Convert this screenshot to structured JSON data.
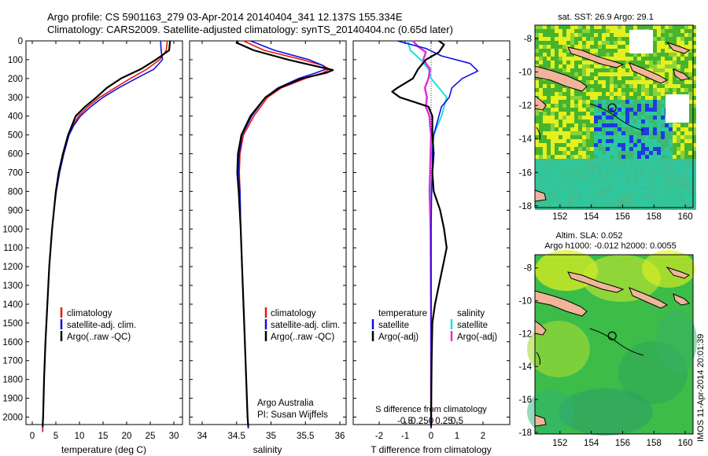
{
  "header": {
    "line1": "Argo profile: CS 5901163_279 03-Apr-2014 20140404_341 12.137S 155.334E",
    "line2": "Climatology: CARS2009. Satellite-adjusted climatology: synTS_20140404.nc (0.65d later)"
  },
  "colors": {
    "climatology": "#e8140e",
    "satellite": "#1010e0",
    "argo": "#000000",
    "sat_salinity": "#22dde0",
    "argo_salinity": "#e030d8",
    "map_green": "#46b42e",
    "map_yellow": "#e6f01e",
    "map_teal": "#2ec8a0",
    "map_blue": "#1e3cdc",
    "land": "#f0b49a"
  },
  "panels": {
    "depth_ticks": [
      "0",
      "100",
      "200",
      "300",
      "400",
      "500",
      "600",
      "700",
      "800",
      "900",
      "1000",
      "1100",
      "1200",
      "1300",
      "1400",
      "1500",
      "1600",
      "1700",
      "1800",
      "1900",
      "2000"
    ],
    "temperature": {
      "xlabel": "temperature (deg C)",
      "xticks": [
        "0",
        "5",
        "10",
        "15",
        "20",
        "25",
        "30"
      ],
      "legend": [
        "climatology",
        "satellite-adj. clim.",
        "Argo(..raw -QC)"
      ]
    },
    "salinity": {
      "xlabel": "salinity",
      "xticks": [
        "34",
        "34.5",
        "35",
        "35.5",
        "36"
      ],
      "legend": [
        "climatology",
        "satellite-adj. clim.",
        "Argo(..raw -QC)"
      ],
      "footer1": "Argo Australia",
      "footer2": "PI: Susan Wijffels"
    },
    "difference": {
      "xlabel": "T difference from climatology",
      "top_label": "S difference from climatology",
      "xticks_t": [
        "-2",
        "-1",
        "0",
        "1",
        "2"
      ],
      "xticks_s": [
        "-0.5",
        "-0.25",
        "0",
        "0.25",
        "0.5"
      ],
      "legend_t_title": "temperature",
      "legend_t": [
        "satellite",
        "Argo(-adj)"
      ],
      "legend_s_title": "salinity",
      "legend_s": [
        "satellite",
        "Argo(-adj)"
      ]
    }
  },
  "maps": {
    "sst_title": "sat. SST: 26.9 Argo: 29.1",
    "sla_title1": "Altim. SLA: 0.052",
    "sla_title2": "Argo h1000: -0.012 h2000: 0.0055",
    "lon_ticks": [
      "152",
      "154",
      "156",
      "158",
      "160"
    ],
    "lat_ticks": [
      "-8",
      "-10",
      "-12",
      "-14",
      "-16",
      "-18"
    ]
  },
  "stamp": "IMOS 11-Apr-2014 20:01:39",
  "chart_data": [
    {
      "type": "line",
      "title": "",
      "xlabel": "temperature (deg C)",
      "ylabel": "",
      "xlim": [
        -1,
        31
      ],
      "ylim": [
        2100,
        0
      ],
      "series": [
        {
          "name": "climatology",
          "depth": [
            0,
            50,
            100,
            150,
            200,
            250,
            300,
            350,
            400,
            450,
            500,
            600,
            700,
            800,
            900,
            1000,
            1200,
            1400,
            1600,
            1800,
            2000,
            2080
          ],
          "values": [
            28.6,
            28.4,
            27.0,
            24.3,
            20.8,
            17.5,
            14.3,
            11.8,
            9.8,
            8.6,
            7.7,
            6.6,
            5.7,
            5.0,
            4.6,
            4.2,
            3.6,
            3.2,
            2.8,
            2.5,
            2.3,
            2.2
          ]
        },
        {
          "name": "satellite-adj. clim.",
          "depth": [
            0,
            50,
            100,
            150,
            200,
            250,
            300,
            350,
            400,
            450,
            500,
            600,
            700,
            800,
            900,
            1000,
            1200,
            1400,
            1600,
            1800,
            2000,
            2060
          ],
          "values": [
            27.2,
            27.3,
            27.6,
            25.8,
            22.0,
            18.3,
            15.0,
            12.4,
            10.2,
            8.8,
            7.8,
            6.7,
            5.8,
            5.1,
            4.6,
            4.2,
            3.6,
            3.2,
            2.8,
            2.5,
            2.3,
            2.2
          ]
        },
        {
          "name": "Argo(..raw -QC)",
          "depth": [
            0,
            50,
            100,
            150,
            200,
            250,
            300,
            350,
            400,
            450,
            500,
            600,
            700,
            800,
            900,
            1000,
            1200,
            1400,
            1600,
            1800,
            2000,
            2050
          ],
          "values": [
            29.2,
            29.0,
            26.2,
            23.0,
            18.8,
            15.8,
            13.6,
            11.2,
            9.2,
            8.4,
            7.6,
            6.5,
            5.6,
            5.0,
            4.6,
            4.2,
            3.6,
            3.2,
            2.8,
            2.5,
            2.3,
            2.2
          ]
        }
      ]
    },
    {
      "type": "line",
      "title": "",
      "xlabel": "salinity",
      "ylabel": "",
      "xlim": [
        33.85,
        36.15
      ],
      "ylim": [
        2100,
        0
      ],
      "series": [
        {
          "name": "climatology",
          "depth": [
            0,
            50,
            100,
            130,
            150,
            170,
            200,
            250,
            300,
            400,
            500,
            600,
            700,
            800,
            1000,
            1200,
            1500,
            1800,
            2000,
            2060
          ],
          "values": [
            34.6,
            34.9,
            35.45,
            35.75,
            35.85,
            35.75,
            35.5,
            35.15,
            34.95,
            34.75,
            34.6,
            34.55,
            34.54,
            34.55,
            34.56,
            34.58,
            34.61,
            34.64,
            34.66,
            34.67
          ]
        },
        {
          "name": "satellite-adj. clim.",
          "depth": [
            0,
            50,
            100,
            130,
            150,
            170,
            200,
            250,
            300,
            400,
            500,
            600,
            700,
            800,
            1000,
            1200,
            1500,
            1800,
            2000,
            2060
          ],
          "values": [
            34.7,
            35.05,
            35.55,
            35.75,
            35.8,
            35.65,
            35.4,
            35.1,
            34.92,
            34.72,
            34.58,
            34.54,
            34.53,
            34.55,
            34.56,
            34.58,
            34.61,
            34.64,
            34.66,
            34.67
          ]
        },
        {
          "name": "Argo(..raw -QC)",
          "depth": [
            0,
            10,
            50,
            100,
            130,
            155,
            170,
            200,
            250,
            300,
            400,
            500,
            600,
            700,
            800,
            1000,
            1200,
            1500,
            1800,
            2000,
            2050
          ],
          "values": [
            34.52,
            34.5,
            34.75,
            35.25,
            35.6,
            35.9,
            35.8,
            35.45,
            35.12,
            34.92,
            34.7,
            34.57,
            34.52,
            34.51,
            34.53,
            34.56,
            34.58,
            34.61,
            34.64,
            34.66,
            34.67
          ]
        }
      ]
    },
    {
      "type": "line",
      "title": "",
      "xlabel": "T difference from climatology",
      "ylabel": "",
      "xlim": [
        -2.5,
        2.5
      ],
      "ylim": [
        2100,
        0
      ],
      "series": [
        {
          "name": "temperature satellite",
          "depth": [
            0,
            40,
            80,
            120,
            160,
            200,
            250,
            300,
            350,
            400,
            500,
            600,
            700,
            800,
            1000,
            1200,
            1500,
            1800,
            2000,
            2060
          ],
          "values": [
            -1.3,
            -0.2,
            0.4,
            1.5,
            1.8,
            1.2,
            0.8,
            0.7,
            0.4,
            0.3,
            0.1,
            0.05,
            0.05,
            0.02,
            0.0,
            0.0,
            0.0,
            0.0,
            0.0,
            0.0
          ]
        },
        {
          "name": "temperature Argo(-adj)",
          "depth": [
            0,
            20,
            60,
            100,
            150,
            200,
            250,
            270,
            300,
            350,
            400,
            500,
            600,
            700,
            800,
            900,
            1000,
            1100,
            1200,
            1300,
            1400,
            1500,
            1700,
            2000,
            2050
          ],
          "values": [
            0.3,
            0.5,
            0.3,
            -0.2,
            -0.5,
            -0.7,
            -1.3,
            -1.5,
            -1.2,
            -0.1,
            0.05,
            0.05,
            0.1,
            0.05,
            0.1,
            0.35,
            0.5,
            0.6,
            0.45,
            0.3,
            0.15,
            0.05,
            0.02,
            0.0,
            0.0
          ]
        },
        {
          "name": "salinity satellite",
          "depth": [
            0,
            50,
            100,
            150,
            200,
            300,
            400,
            500,
            600,
            700,
            800,
            1000,
            1500,
            2000,
            2060
          ],
          "values": [
            -0.45,
            -0.4,
            -0.2,
            -0.05,
            0.0,
            0.3,
            0.2,
            0.05,
            0.0,
            -0.02,
            -0.01,
            0.0,
            0.0,
            0.0,
            0.0
          ]
        },
        {
          "name": "salinity Argo(-adj)",
          "depth": [
            0,
            30,
            60,
            100,
            150,
            200,
            250,
            300,
            350,
            400,
            450,
            500,
            600,
            700,
            800,
            900,
            1000,
            1500,
            2000,
            2050
          ],
          "values": [
            -0.35,
            -0.25,
            -0.1,
            -0.15,
            -0.02,
            -0.05,
            -0.12,
            -0.08,
            -0.1,
            -0.03,
            -0.02,
            0.0,
            -0.01,
            -0.02,
            -0.03,
            -0.02,
            -0.01,
            0.0,
            0.0,
            0.0
          ]
        }
      ]
    }
  ]
}
